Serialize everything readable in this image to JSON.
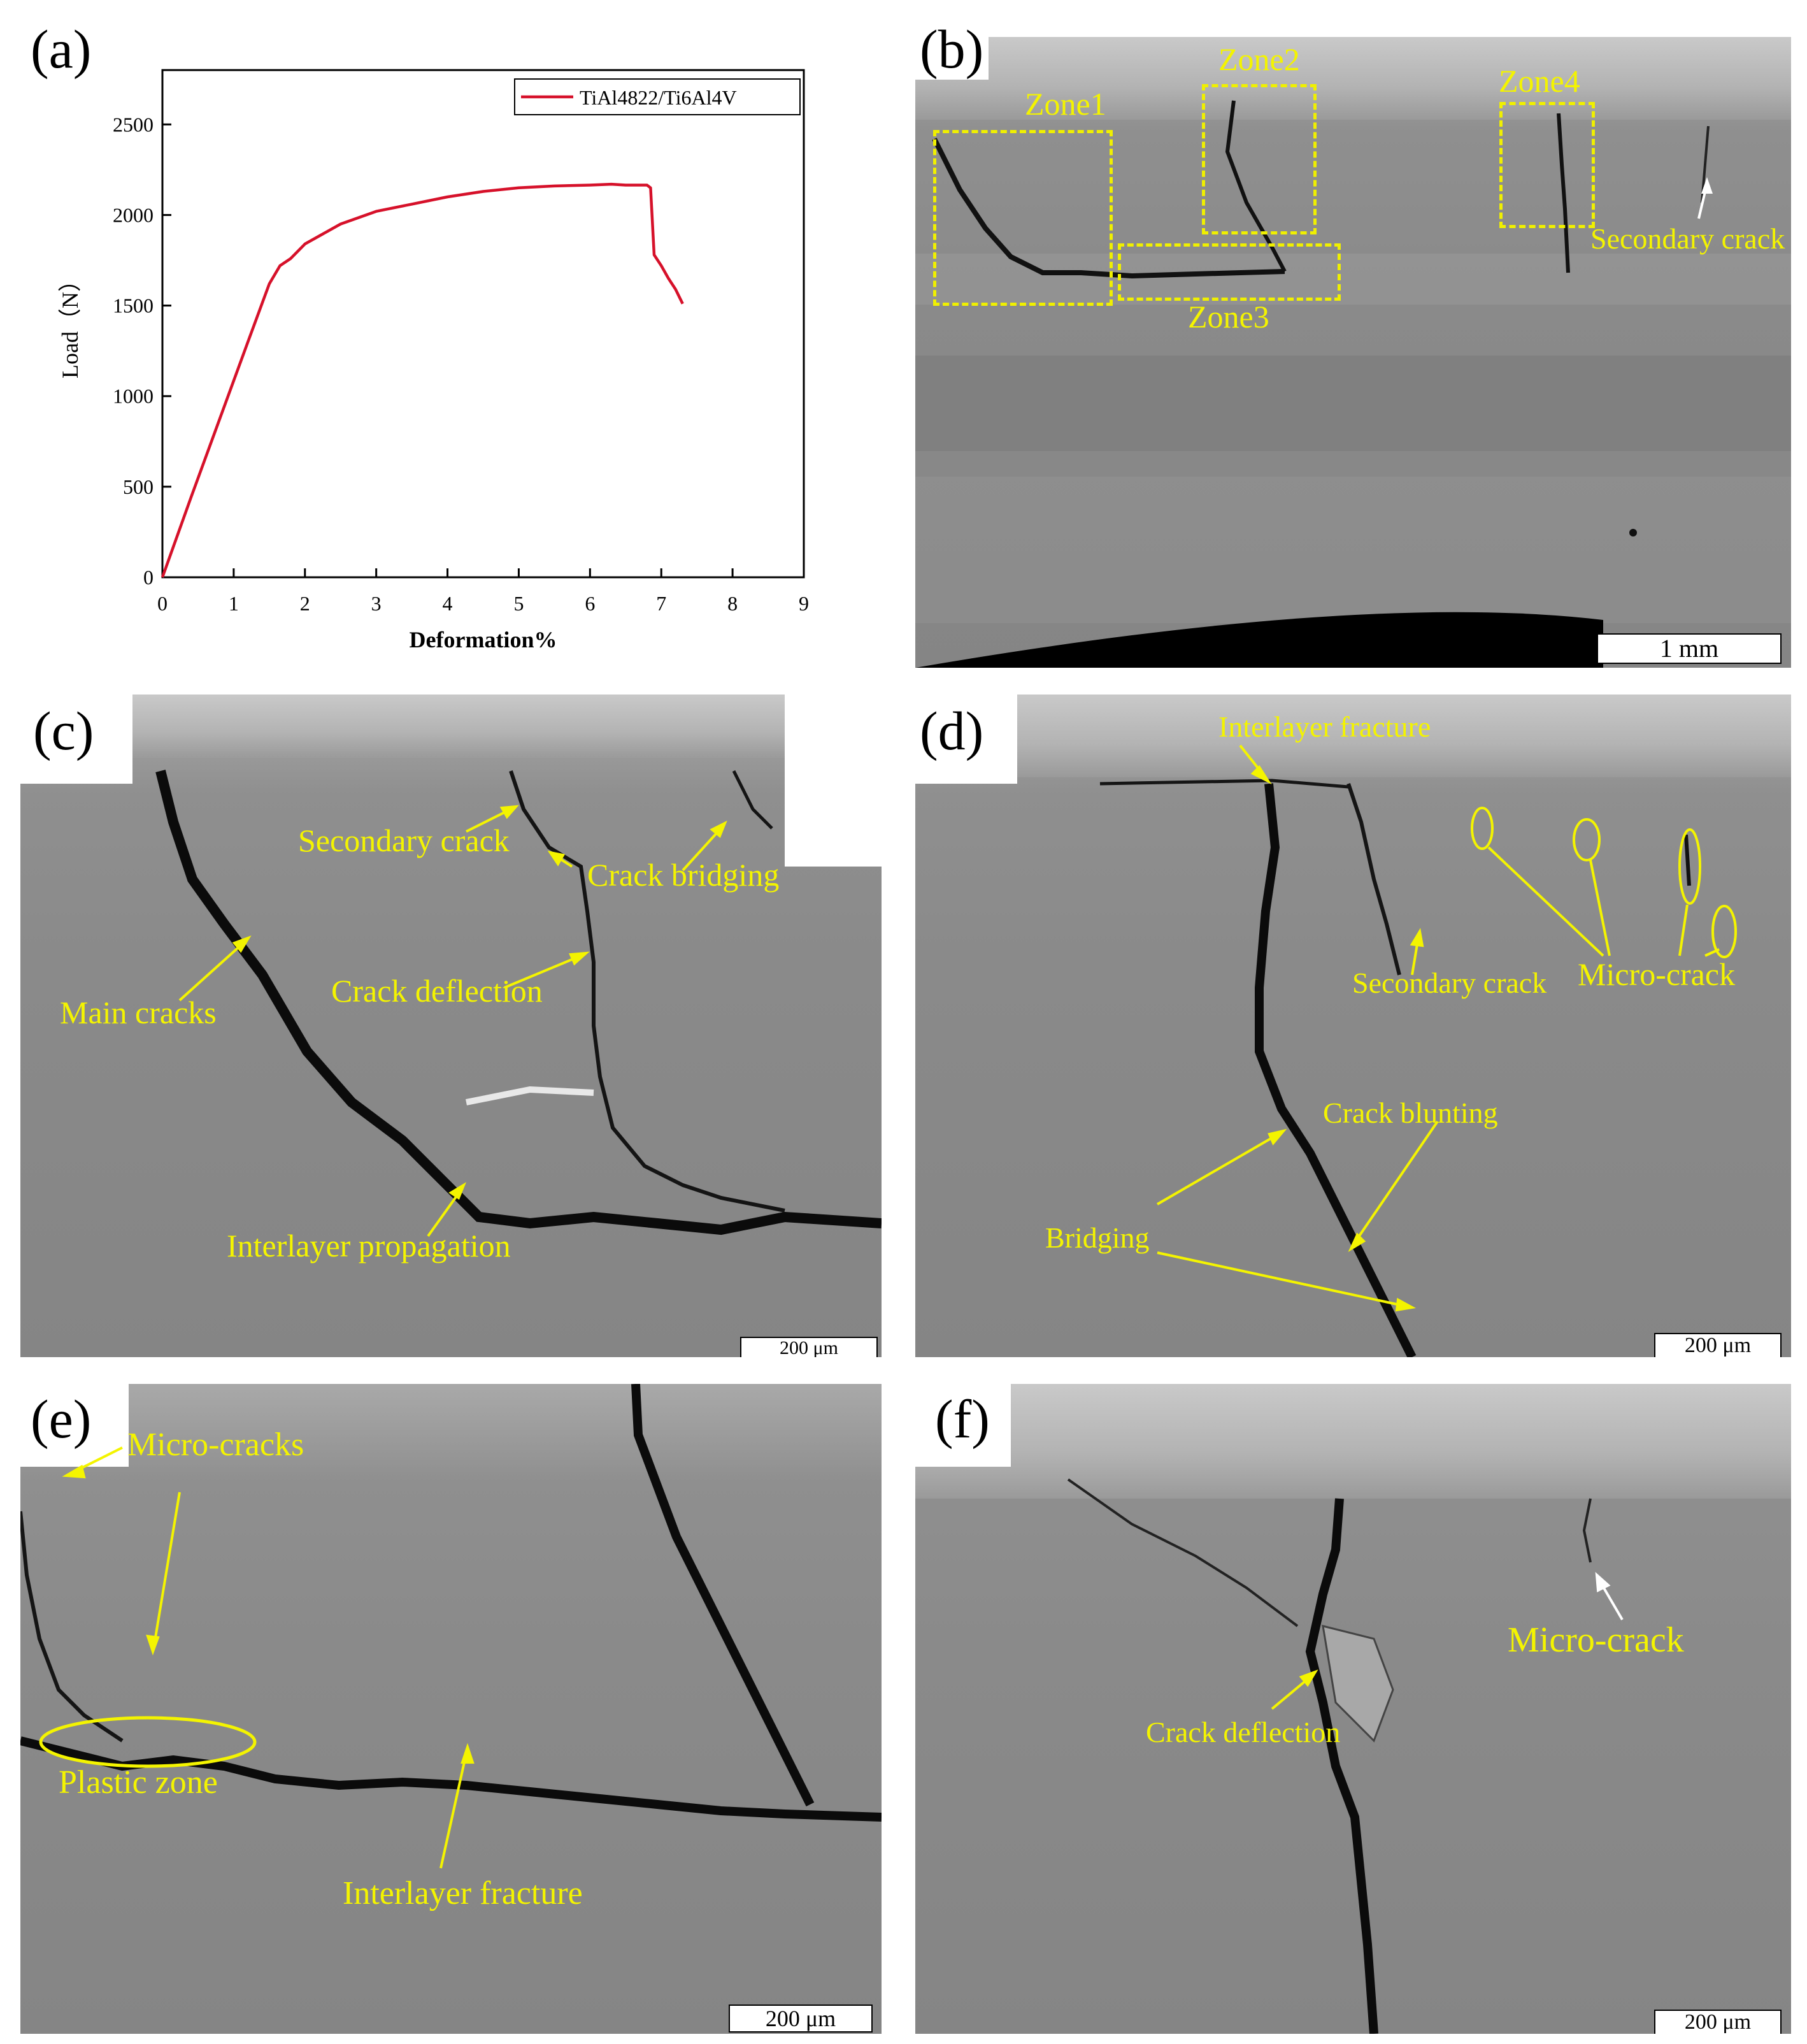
{
  "panels": {
    "a": {
      "letter": "(a)"
    },
    "b": {
      "letter": "(b)",
      "scale": "1 mm",
      "labels": {
        "zone1": "Zone1",
        "zone2": "Zone2",
        "zone3": "Zone3",
        "zone4": "Zone4",
        "secondary_crack": "Secondary crack"
      }
    },
    "c": {
      "letter": "(c)",
      "scale": "200 μm",
      "labels": {
        "secondary_crack": "Secondary crack",
        "crack_bridging": "Crack bridging",
        "main_cracks": "Main cracks",
        "crack_deflection": "Crack deflection",
        "interlayer_propagation": "Interlayer propagation"
      }
    },
    "d": {
      "letter": "(d)",
      "scale": "200 μm",
      "labels": {
        "interlayer_fracture": "Interlayer fracture",
        "secondary_crack": "Secondary crack",
        "micro_crack": "Micro-crack",
        "crack_blunting": "Crack blunting",
        "bridging": "Bridging"
      }
    },
    "e": {
      "letter": "(e)",
      "scale": "200 μm",
      "labels": {
        "micro_cracks": "Micro-cracks",
        "plastic_zone": "Plastic zone",
        "interlayer_fracture": "Interlayer fracture"
      }
    },
    "f": {
      "letter": "(f)",
      "scale": "200 μm",
      "labels": {
        "micro_crack": "Micro-crack",
        "crack_deflection": "Crack deflection"
      }
    }
  },
  "chart_data": {
    "type": "line",
    "xlabel": "Deformation%",
    "ylabel": "Load（N）",
    "xlim": [
      0,
      9
    ],
    "ylim": [
      0,
      2800
    ],
    "xticks": [
      0,
      1,
      2,
      3,
      4,
      5,
      6,
      7,
      8,
      9
    ],
    "yticks": [
      0,
      500,
      1000,
      1500,
      2000,
      2500
    ],
    "legend_position": "top-right",
    "series": [
      {
        "name": "TiAl4822/Ti6Al4V",
        "color": "#d6112a",
        "x": [
          0,
          0.4,
          0.8,
          1.2,
          1.5,
          1.65,
          1.8,
          2.0,
          2.5,
          3.0,
          3.5,
          4.0,
          4.5,
          5.0,
          5.5,
          6.0,
          6.3,
          6.5,
          6.8,
          6.85,
          6.9,
          7.0,
          7.1,
          7.2,
          7.3
        ],
        "y": [
          0,
          440,
          870,
          1300,
          1620,
          1720,
          1760,
          1840,
          1950,
          2020,
          2060,
          2100,
          2130,
          2150,
          2160,
          2165,
          2170,
          2165,
          2165,
          2150,
          1780,
          1720,
          1650,
          1590,
          1510
        ]
      }
    ]
  }
}
